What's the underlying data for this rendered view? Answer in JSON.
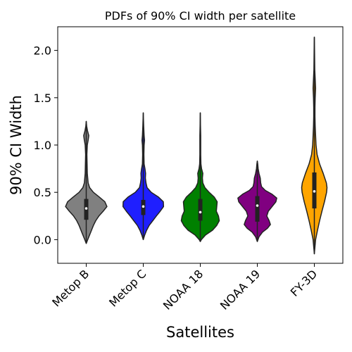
{
  "chart_data": {
    "type": "violin",
    "title": "PDFs of 90% CI width per satellite",
    "xlabel": "Satellites",
    "ylabel": "90% CI Width",
    "ylim": [
      -0.25,
      2.25
    ],
    "yticks": [
      0.0,
      0.5,
      1.0,
      1.5,
      2.0
    ],
    "ytick_labels": [
      "0.0",
      "0.5",
      "1.0",
      "1.5",
      "2.0"
    ],
    "categories": [
      "Metop B",
      "Metop C",
      "NOAA 18",
      "NOAA 19",
      "FY-3D"
    ],
    "grid": false,
    "series": [
      {
        "name": "Metop B",
        "color": "#808080",
        "min": -0.04,
        "max": 1.25,
        "q1": 0.21,
        "median": 0.33,
        "q3": 0.43,
        "density": [
          [
            -0.04,
            0.0
          ],
          [
            0.0,
            0.07
          ],
          [
            0.05,
            0.16
          ],
          [
            0.1,
            0.25
          ],
          [
            0.15,
            0.34
          ],
          [
            0.2,
            0.45
          ],
          [
            0.25,
            0.6
          ],
          [
            0.3,
            0.8
          ],
          [
            0.35,
            0.98
          ],
          [
            0.4,
            0.88
          ],
          [
            0.45,
            0.62
          ],
          [
            0.5,
            0.34
          ],
          [
            0.55,
            0.16
          ],
          [
            0.6,
            0.09
          ],
          [
            0.7,
            0.05
          ],
          [
            0.8,
            0.04
          ],
          [
            0.9,
            0.03
          ],
          [
            1.0,
            0.05
          ],
          [
            1.05,
            0.09
          ],
          [
            1.1,
            0.12
          ],
          [
            1.15,
            0.06
          ],
          [
            1.2,
            0.02
          ],
          [
            1.25,
            0.0
          ]
        ]
      },
      {
        "name": "Metop C",
        "color": "#1f1fff",
        "min": 0.0,
        "max": 1.34,
        "q1": 0.26,
        "median": 0.35,
        "q3": 0.42,
        "density": [
          [
            0.0,
            0.0
          ],
          [
            0.05,
            0.07
          ],
          [
            0.1,
            0.16
          ],
          [
            0.15,
            0.28
          ],
          [
            0.2,
            0.45
          ],
          [
            0.25,
            0.62
          ],
          [
            0.3,
            0.8
          ],
          [
            0.35,
            0.96
          ],
          [
            0.4,
            0.95
          ],
          [
            0.45,
            0.72
          ],
          [
            0.5,
            0.38
          ],
          [
            0.55,
            0.18
          ],
          [
            0.6,
            0.13
          ],
          [
            0.65,
            0.1
          ],
          [
            0.7,
            0.11
          ],
          [
            0.75,
            0.08
          ],
          [
            0.8,
            0.04
          ],
          [
            0.9,
            0.03
          ],
          [
            1.0,
            0.04
          ],
          [
            1.05,
            0.06
          ],
          [
            1.1,
            0.04
          ],
          [
            1.2,
            0.02
          ],
          [
            1.34,
            0.0
          ]
        ]
      },
      {
        "name": "NOAA 18",
        "color": "#008000",
        "min": -0.02,
        "max": 1.34,
        "q1": 0.2,
        "median": 0.29,
        "q3": 0.43,
        "density": [
          [
            -0.02,
            0.0
          ],
          [
            0.0,
            0.05
          ],
          [
            0.05,
            0.25
          ],
          [
            0.1,
            0.58
          ],
          [
            0.15,
            0.78
          ],
          [
            0.2,
            0.9
          ],
          [
            0.25,
            0.86
          ],
          [
            0.3,
            0.76
          ],
          [
            0.35,
            0.78
          ],
          [
            0.4,
            0.8
          ],
          [
            0.45,
            0.66
          ],
          [
            0.5,
            0.42
          ],
          [
            0.55,
            0.22
          ],
          [
            0.6,
            0.12
          ],
          [
            0.65,
            0.1
          ],
          [
            0.7,
            0.12
          ],
          [
            0.75,
            0.06
          ],
          [
            0.8,
            0.03
          ],
          [
            0.9,
            0.02
          ],
          [
            1.0,
            0.02
          ],
          [
            1.1,
            0.02
          ],
          [
            1.2,
            0.01
          ],
          [
            1.34,
            0.0
          ]
        ]
      },
      {
        "name": "NOAA 19",
        "color": "#800080",
        "min": -0.02,
        "max": 0.83,
        "q1": 0.19,
        "median": 0.36,
        "q3": 0.46,
        "density": [
          [
            -0.02,
            0.0
          ],
          [
            0.03,
            0.08
          ],
          [
            0.08,
            0.25
          ],
          [
            0.12,
            0.48
          ],
          [
            0.16,
            0.62
          ],
          [
            0.2,
            0.56
          ],
          [
            0.25,
            0.45
          ],
          [
            0.3,
            0.52
          ],
          [
            0.35,
            0.7
          ],
          [
            0.4,
            0.88
          ],
          [
            0.44,
            0.92
          ],
          [
            0.48,
            0.7
          ],
          [
            0.52,
            0.38
          ],
          [
            0.56,
            0.2
          ],
          [
            0.6,
            0.16
          ],
          [
            0.65,
            0.14
          ],
          [
            0.7,
            0.08
          ],
          [
            0.75,
            0.04
          ],
          [
            0.8,
            0.02
          ],
          [
            0.83,
            0.0
          ]
        ]
      },
      {
        "name": "FY-3D",
        "color": "#ffa500",
        "min": -0.15,
        "max": 2.14,
        "q1": 0.33,
        "median": 0.51,
        "q3": 0.71,
        "density": [
          [
            -0.15,
            0.0
          ],
          [
            -0.1,
            0.02
          ],
          [
            0.0,
            0.06
          ],
          [
            0.1,
            0.15
          ],
          [
            0.2,
            0.25
          ],
          [
            0.3,
            0.36
          ],
          [
            0.4,
            0.48
          ],
          [
            0.5,
            0.58
          ],
          [
            0.55,
            0.6
          ],
          [
            0.6,
            0.57
          ],
          [
            0.7,
            0.42
          ],
          [
            0.8,
            0.25
          ],
          [
            0.9,
            0.13
          ],
          [
            1.0,
            0.08
          ],
          [
            1.1,
            0.06
          ],
          [
            1.2,
            0.04
          ],
          [
            1.3,
            0.03
          ],
          [
            1.4,
            0.03
          ],
          [
            1.5,
            0.04
          ],
          [
            1.6,
            0.06
          ],
          [
            1.7,
            0.04
          ],
          [
            1.8,
            0.02
          ],
          [
            2.0,
            0.01
          ],
          [
            2.14,
            0.0
          ]
        ]
      }
    ]
  }
}
